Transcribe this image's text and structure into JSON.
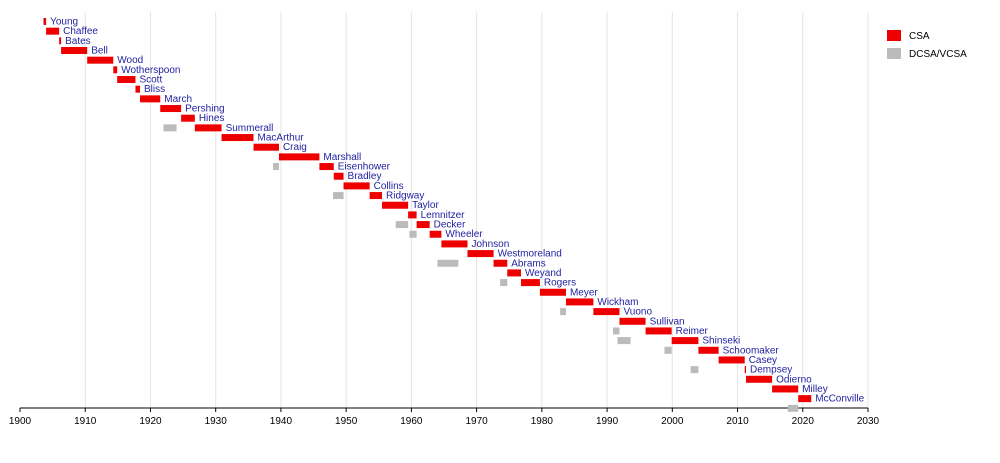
{
  "chart_data": {
    "type": "bar",
    "subtype": "timeline",
    "title": "",
    "xlabel": "",
    "ylabel": "",
    "xlim": [
      1900,
      2030
    ],
    "x_ticks": [
      1900,
      1910,
      1920,
      1930,
      1940,
      1950,
      1960,
      1970,
      1980,
      1990,
      2000,
      2010,
      2020,
      2030
    ],
    "grid": true,
    "legend_position": "top-right",
    "series": [
      {
        "name": "CSA",
        "color": "#ee0000"
      },
      {
        "name": "DCSA/VCSA",
        "color": "#bbbbbb"
      }
    ],
    "rows": [
      {
        "name": "Young",
        "csa": [
          1903.6,
          1904.0
        ],
        "vcsa": null
      },
      {
        "name": "Chaffee",
        "csa": [
          1904.0,
          1906.0
        ],
        "vcsa": null
      },
      {
        "name": "Bates",
        "csa": [
          1906.0,
          1906.3
        ],
        "vcsa": null
      },
      {
        "name": "Bell",
        "csa": [
          1906.3,
          1910.3
        ],
        "vcsa": null
      },
      {
        "name": "Wood",
        "csa": [
          1910.3,
          1914.3
        ],
        "vcsa": null
      },
      {
        "name": "Wotherspoon",
        "csa": [
          1914.3,
          1914.9
        ],
        "vcsa": null
      },
      {
        "name": "Scott",
        "csa": [
          1914.9,
          1917.7
        ],
        "vcsa": null
      },
      {
        "name": "Bliss",
        "csa": [
          1917.7,
          1918.4
        ],
        "vcsa": null
      },
      {
        "name": "March",
        "csa": [
          1918.4,
          1921.5
        ],
        "vcsa": null
      },
      {
        "name": "Pershing",
        "csa": [
          1921.5,
          1924.7
        ],
        "vcsa": null
      },
      {
        "name": "Hines",
        "csa": [
          1924.7,
          1926.8
        ],
        "vcsa": [
          1922.0,
          1924.0
        ]
      },
      {
        "name": "Summerall",
        "csa": [
          1926.8,
          1930.9
        ],
        "vcsa": null
      },
      {
        "name": "MacArthur",
        "csa": [
          1930.9,
          1935.8
        ],
        "vcsa": null
      },
      {
        "name": "Craig",
        "csa": [
          1935.8,
          1939.7
        ],
        "vcsa": null
      },
      {
        "name": "Marshall",
        "csa": [
          1939.7,
          1945.9
        ],
        "vcsa": [
          1938.8,
          1939.7
        ]
      },
      {
        "name": "Eisenhower",
        "csa": [
          1945.9,
          1948.1
        ],
        "vcsa": null
      },
      {
        "name": "Bradley",
        "csa": [
          1948.1,
          1949.6
        ],
        "vcsa": null
      },
      {
        "name": "Collins",
        "csa": [
          1949.6,
          1953.6
        ],
        "vcsa": [
          1948.0,
          1949.6
        ]
      },
      {
        "name": "Ridgway",
        "csa": [
          1953.6,
          1955.5
        ],
        "vcsa": null
      },
      {
        "name": "Taylor",
        "csa": [
          1955.5,
          1959.5
        ],
        "vcsa": null
      },
      {
        "name": "Lemnitzer",
        "csa": [
          1959.5,
          1960.8
        ],
        "vcsa": [
          1957.6,
          1959.5
        ]
      },
      {
        "name": "Decker",
        "csa": [
          1960.8,
          1962.8
        ],
        "vcsa": [
          1959.7,
          1960.8
        ]
      },
      {
        "name": "Wheeler",
        "csa": [
          1962.8,
          1964.6
        ],
        "vcsa": null
      },
      {
        "name": "Johnson",
        "csa": [
          1964.6,
          1968.6
        ],
        "vcsa": null
      },
      {
        "name": "Westmoreland",
        "csa": [
          1968.6,
          1972.6
        ],
        "vcsa": [
          1964.0,
          1967.2
        ]
      },
      {
        "name": "Abrams",
        "csa": [
          1972.6,
          1974.7
        ],
        "vcsa": null
      },
      {
        "name": "Weyand",
        "csa": [
          1974.7,
          1976.8
        ],
        "vcsa": [
          1973.6,
          1974.7
        ]
      },
      {
        "name": "Rogers",
        "csa": [
          1976.8,
          1979.7
        ],
        "vcsa": null
      },
      {
        "name": "Meyer",
        "csa": [
          1979.7,
          1983.7
        ],
        "vcsa": null
      },
      {
        "name": "Wickham",
        "csa": [
          1983.7,
          1987.9
        ],
        "vcsa": [
          1982.8,
          1983.7
        ]
      },
      {
        "name": "Vuono",
        "csa": [
          1987.9,
          1991.9
        ],
        "vcsa": null
      },
      {
        "name": "Sullivan",
        "csa": [
          1991.9,
          1995.9
        ],
        "vcsa": [
          1990.9,
          1991.9
        ]
      },
      {
        "name": "Reimer",
        "csa": [
          1995.9,
          1999.9
        ],
        "vcsa": [
          1991.6,
          1993.6
        ]
      },
      {
        "name": "Shinseki",
        "csa": [
          1999.9,
          2004.0
        ],
        "vcsa": [
          1998.8,
          1999.9
        ]
      },
      {
        "name": "Schoomaker",
        "csa": [
          2004.0,
          2007.1
        ],
        "vcsa": null
      },
      {
        "name": "Casey",
        "csa": [
          2007.1,
          2011.1
        ],
        "vcsa": [
          2002.8,
          2004.0
        ]
      },
      {
        "name": "Dempsey",
        "csa": [
          2011.1,
          2011.3
        ],
        "vcsa": null
      },
      {
        "name": "Odierno",
        "csa": [
          2011.3,
          2015.3
        ],
        "vcsa": null
      },
      {
        "name": "Milley",
        "csa": [
          2015.3,
          2019.3
        ],
        "vcsa": null
      },
      {
        "name": "McConville",
        "csa": [
          2019.3,
          2021.3
        ],
        "vcsa": [
          2017.7,
          2019.3
        ]
      }
    ]
  }
}
